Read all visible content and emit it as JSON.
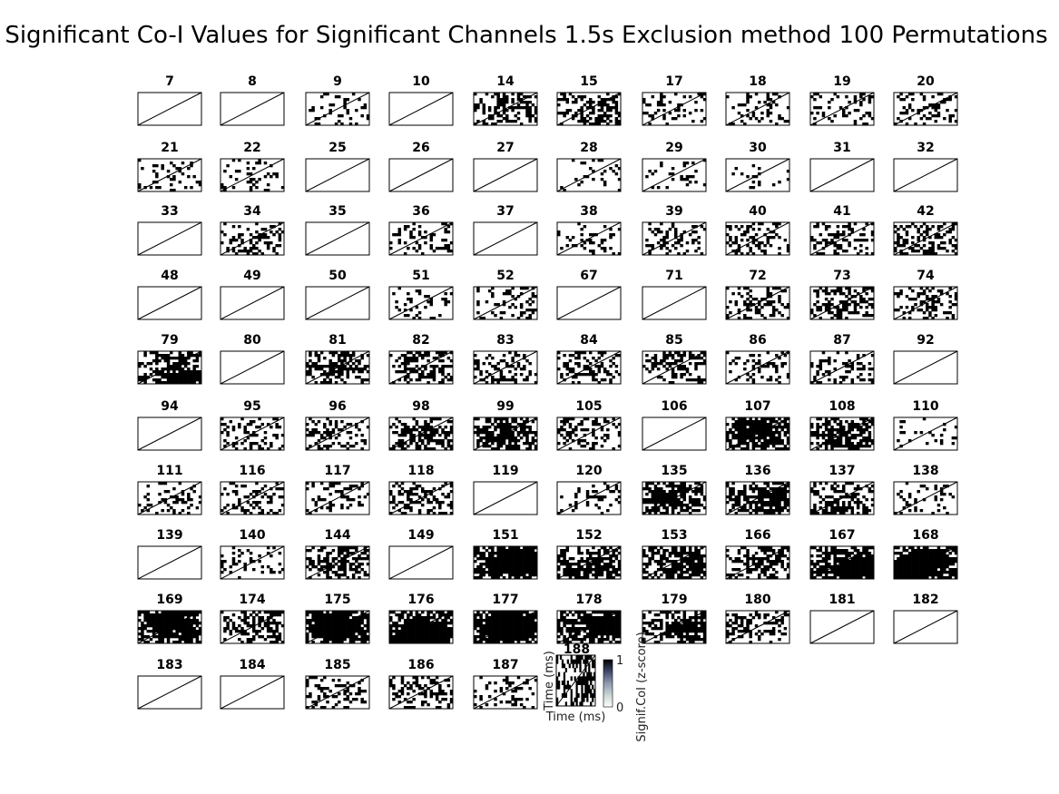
{
  "chart_data": {
    "type": "heatmap",
    "title": "Significant Co-I Values for Significant Channels 1.5s Exclusion method 100 Permutations",
    "channels": [
      "7",
      "8",
      "9",
      "10",
      "14",
      "15",
      "17",
      "18",
      "19",
      "20",
      "21",
      "22",
      "25",
      "26",
      "27",
      "28",
      "29",
      "30",
      "31",
      "32",
      "33",
      "34",
      "35",
      "36",
      "37",
      "38",
      "39",
      "40",
      "41",
      "42",
      "48",
      "49",
      "50",
      "51",
      "52",
      "67",
      "71",
      "72",
      "73",
      "74",
      "79",
      "80",
      "81",
      "82",
      "83",
      "84",
      "85",
      "86",
      "87",
      "92",
      "94",
      "95",
      "96",
      "98",
      "99",
      "105",
      "106",
      "107",
      "108",
      "110",
      "111",
      "116",
      "117",
      "118",
      "119",
      "120",
      "135",
      "136",
      "137",
      "138",
      "139",
      "140",
      "144",
      "149",
      "151",
      "152",
      "153",
      "166",
      "167",
      "168",
      "169",
      "174",
      "175",
      "176",
      "177",
      "178",
      "179",
      "180",
      "181",
      "182",
      "183",
      "184",
      "185",
      "186",
      "187",
      "188"
    ],
    "density": [
      0,
      0,
      0.18,
      0,
      0.35,
      0.4,
      0.18,
      0.15,
      0.18,
      0.22,
      0.12,
      0.12,
      0,
      0,
      0,
      0.1,
      0.1,
      0.06,
      0,
      0,
      0,
      0.25,
      0,
      0.22,
      0,
      0.12,
      0.2,
      0.25,
      0.28,
      0.38,
      0,
      0,
      0,
      0.12,
      0.18,
      0,
      0,
      0.32,
      0.32,
      0.28,
      0.55,
      0,
      0.38,
      0.35,
      0.3,
      0.32,
      0.35,
      0.22,
      0.2,
      0,
      0,
      0.22,
      0.25,
      0.45,
      0.55,
      0.28,
      0,
      0.6,
      0.55,
      0.08,
      0.18,
      0.25,
      0.18,
      0.3,
      0,
      0.18,
      0.55,
      0.55,
      0.45,
      0.12,
      0,
      0.12,
      0.45,
      0,
      0.82,
      0.6,
      0.5,
      0.4,
      0.7,
      0.75,
      0.7,
      0.38,
      0.75,
      0.82,
      0.85,
      0.7,
      0.5,
      0.25,
      0,
      0,
      0,
      0,
      0.25,
      0.3,
      0.22,
      0.4
    ],
    "inset_channel": "188",
    "xlabel": "Time (ms)",
    "ylabel": "Time (ms)",
    "colorbar": {
      "label": "Signif.CoI (z-score)",
      "min": "0",
      "max": "1",
      "colormap": "bone_r"
    },
    "colors": {
      "fill": "#000000",
      "frame": "#000000",
      "background": "#ffffff"
    }
  }
}
